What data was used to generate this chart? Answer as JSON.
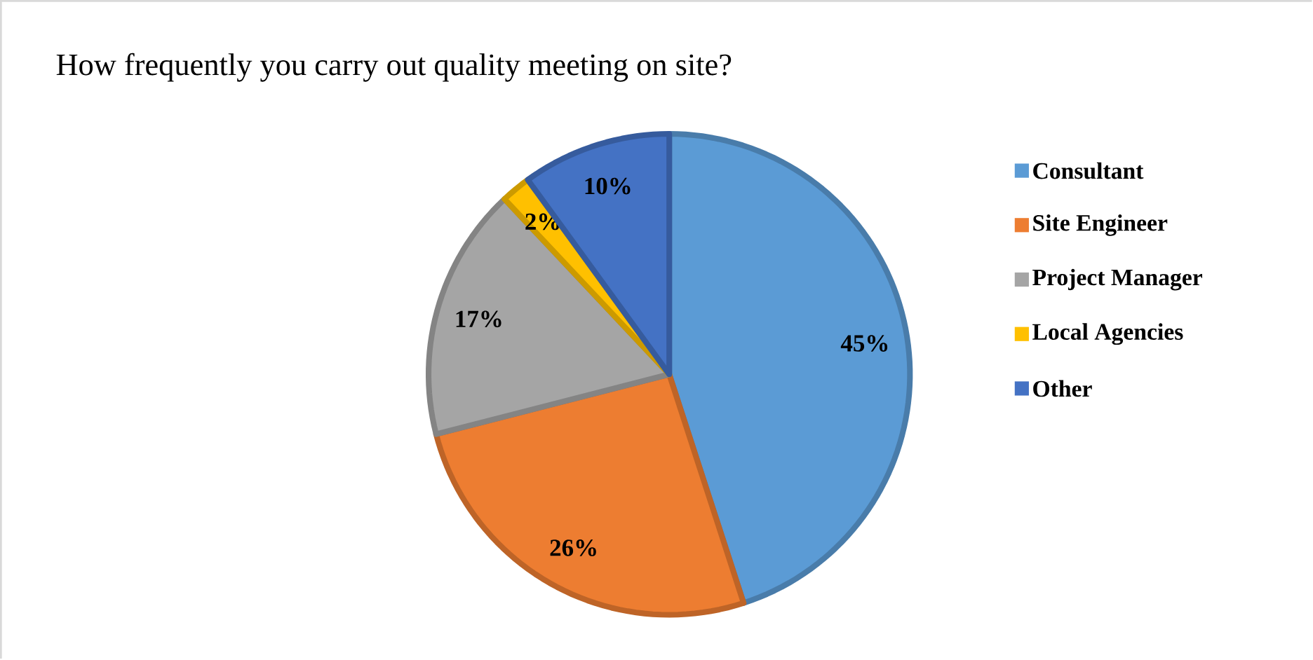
{
  "chart_data": {
    "type": "pie",
    "title": "How frequently you carry out quality meeting on site?",
    "categories": [
      "Consultant",
      "Site Engineer",
      "Project Manager",
      "Local Agencies",
      "Other"
    ],
    "values": [
      45,
      26,
      17,
      2,
      10
    ],
    "colors": [
      "#5b9bd5",
      "#ed7d31",
      "#a5a5a5",
      "#ffc000",
      "#4472c4"
    ],
    "value_labels": [
      "45%",
      "26%",
      "17%",
      "2%",
      "10%"
    ],
    "legend": "right"
  }
}
